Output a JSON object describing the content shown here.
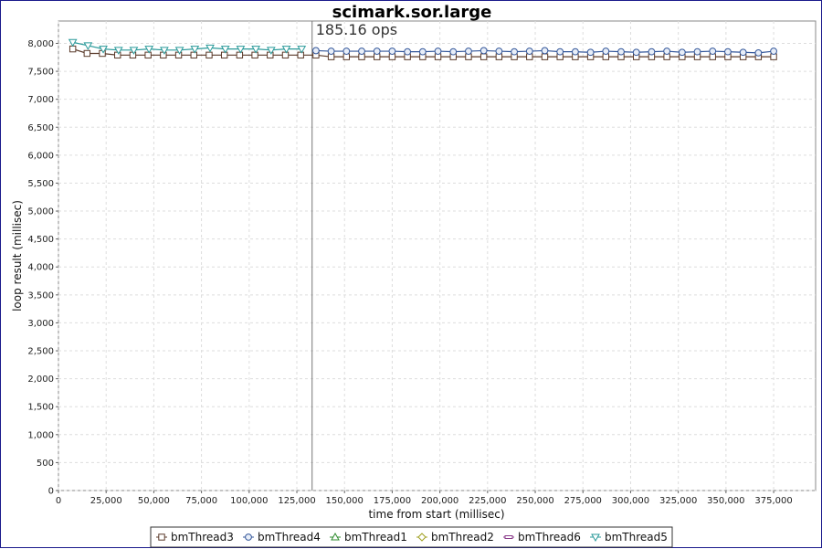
{
  "chart_data": {
    "type": "line",
    "title": "scimark.sor.large",
    "annotation": "185.16 ops",
    "marker_x": 133000,
    "xlabel": "time from start (millisec)",
    "ylabel": "loop result (millisec)",
    "xlim": [
      0,
      397000
    ],
    "ylim": [
      0,
      8400
    ],
    "xticks": [
      0,
      25000,
      50000,
      75000,
      100000,
      125000,
      150000,
      175000,
      200000,
      225000,
      250000,
      275000,
      300000,
      325000,
      350000,
      375000
    ],
    "xtick_labels": [
      "0",
      "25,000",
      "50,000",
      "75,000",
      "100,000",
      "125,000",
      "150,000",
      "175,000",
      "200,000",
      "225,000",
      "250,000",
      "275,000",
      "300,000",
      "325,000",
      "350,000",
      "375,000"
    ],
    "yticks": [
      0,
      500,
      1000,
      1500,
      2000,
      2500,
      3000,
      3500,
      4000,
      4500,
      5000,
      5500,
      6000,
      6500,
      7000,
      7500,
      8000
    ],
    "ytick_labels": [
      "0",
      "500",
      "1,000",
      "1,500",
      "2,000",
      "2,500",
      "3,000",
      "3,500",
      "4,000",
      "4,500",
      "5,000",
      "5,500",
      "6,000",
      "6,500",
      "7,000",
      "7,500",
      "8,000"
    ],
    "grid": true,
    "legend_position": "bottom",
    "series": [
      {
        "name": "bmThread3",
        "marker": "square",
        "color": "#5a3a2a",
        "x": [
          7500,
          15000,
          23000,
          31000,
          39000,
          47000,
          55000,
          63000,
          71000,
          79000,
          87000,
          95000,
          103000,
          111000,
          119000,
          127000,
          135000,
          143000,
          151000,
          159000,
          167000,
          175000,
          183000,
          191000,
          199000,
          207000,
          215000,
          223000,
          231000,
          239000,
          247000,
          255000,
          263000,
          271000,
          279000,
          287000,
          295000,
          303000,
          311000,
          319000,
          327000,
          335000,
          343000,
          351000,
          359000,
          367000,
          375000
        ],
        "y": [
          7900,
          7820,
          7820,
          7790,
          7790,
          7790,
          7790,
          7790,
          7790,
          7790,
          7790,
          7790,
          7790,
          7790,
          7790,
          7790,
          7790,
          7760,
          7760,
          7760,
          7760,
          7760,
          7760,
          7760,
          7760,
          7760,
          7760,
          7760,
          7760,
          7760,
          7760,
          7760,
          7760,
          7760,
          7760,
          7760,
          7760,
          7760,
          7760,
          7760,
          7760,
          7760,
          7760,
          7760,
          7760,
          7760,
          7760
        ]
      },
      {
        "name": "bmThread4",
        "marker": "circle",
        "color": "#34579a",
        "x": [
          135000,
          143000,
          151000,
          159000,
          167000,
          175000,
          183000,
          191000,
          199000,
          207000,
          215000,
          223000,
          231000,
          239000,
          247000,
          255000,
          263000,
          271000,
          279000,
          287000,
          295000,
          303000,
          311000,
          319000,
          327000,
          335000,
          343000,
          351000,
          359000,
          367000,
          375000
        ],
        "y": [
          7870,
          7860,
          7860,
          7860,
          7860,
          7860,
          7850,
          7850,
          7860,
          7850,
          7860,
          7870,
          7860,
          7850,
          7860,
          7870,
          7850,
          7850,
          7840,
          7860,
          7850,
          7840,
          7850,
          7860,
          7840,
          7850,
          7860,
          7850,
          7840,
          7830,
          7860
        ]
      },
      {
        "name": "bmThread1",
        "marker": "triangle-up",
        "color": "#2e8b2e",
        "x": [],
        "y": []
      },
      {
        "name": "bmThread2",
        "marker": "diamond",
        "color": "#a0a020",
        "x": [],
        "y": []
      },
      {
        "name": "bmThread6",
        "marker": "dash",
        "color": "#8a3a8a",
        "x": [],
        "y": []
      },
      {
        "name": "bmThread5",
        "marker": "triangle-down",
        "color": "#2a9a9a",
        "x": [
          7500,
          15500,
          23500,
          31500,
          39500,
          47500,
          55500,
          63500,
          71500,
          79500,
          87500,
          95500,
          103500,
          111500,
          119500,
          127500
        ],
        "y": [
          8020,
          7960,
          7900,
          7880,
          7880,
          7900,
          7880,
          7880,
          7900,
          7920,
          7900,
          7900,
          7900,
          7880,
          7900,
          7900
        ]
      }
    ]
  }
}
